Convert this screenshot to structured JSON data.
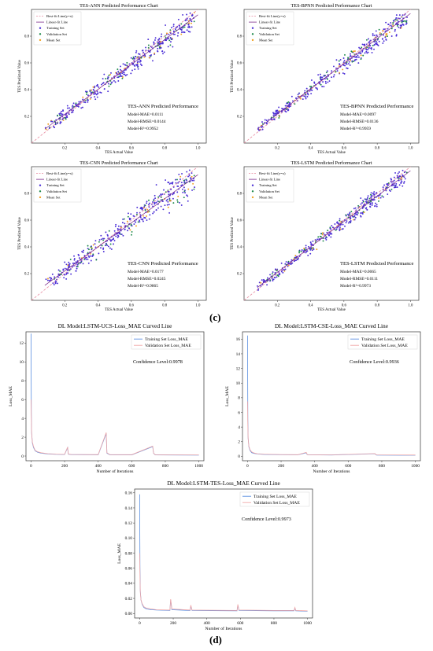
{
  "panel_labels": {
    "c": "(c)",
    "d": "(d)"
  },
  "colors": {
    "training": "#4b2fd6",
    "validation": "#1f8a4c",
    "mean": "#f0a020",
    "bestfit": "#e88aa0",
    "linearfit": "#7b2a8a",
    "train_loss": "#5b8fe0",
    "val_loss": "#f2a8a8"
  },
  "chart_data": [
    {
      "type": "scatter",
      "title": "TES-ANN Predicted Performance Chart",
      "xlabel": "TES Actual Value",
      "ylabel": "TES Predicted Value",
      "xlim": [
        0.0,
        1.05
      ],
      "ylim": [
        0.0,
        1.0
      ],
      "xticks": [
        "0.2",
        "0.4",
        "0.6",
        "0.8",
        "1.0"
      ],
      "yticks": [
        "0.2",
        "0.4",
        "0.6",
        "0.8"
      ],
      "legend": [
        "Best-fit Line(y=x)",
        "Linear-fit Line",
        "Training Set",
        "Validation Set",
        "Mean Set"
      ],
      "legend_position": "top-left",
      "annotation_title": "TES-ANN Predicted Performance",
      "metrics": [
        "Model-MAE=0.0111",
        "Model-RMSE=0.0144",
        "Model-R²=0.9952"
      ],
      "fit": {
        "slope": 0.93,
        "intercept": 0.03
      },
      "spread": 0.06
    },
    {
      "type": "scatter",
      "title": "TES-BPNN Predicted Performance Chart",
      "xlabel": "TES Actual Value",
      "ylabel": "TES Predicted Value",
      "xlim": [
        0.0,
        1.05
      ],
      "ylim": [
        0.0,
        1.0
      ],
      "xticks": [
        "0.2",
        "0.4",
        "0.6",
        "0.8",
        "1.0"
      ],
      "yticks": [
        "0.2",
        "0.4",
        "0.6",
        "0.8"
      ],
      "legend": [
        "Best-fit Line(y=x)",
        "Linear-fit Line",
        "Training Set",
        "Validation Set",
        "Mean Set"
      ],
      "legend_position": "top-left",
      "annotation_title": "TES-BPNN Predicted Performance",
      "metrics": [
        "Model-MAE=0.0097",
        "Model-RMSE=0.0136",
        "Model-R²=0.9959"
      ],
      "fit": {
        "slope": 0.94,
        "intercept": 0.03
      },
      "spread": 0.055
    },
    {
      "type": "scatter",
      "title": "TES-CNN Predicted Performance Chart",
      "xlabel": "TES Actual Value",
      "ylabel": "TES Predicted Value",
      "xlim": [
        0.0,
        1.05
      ],
      "ylim": [
        0.0,
        1.0
      ],
      "xticks": [
        "0.2",
        "0.4",
        "0.6",
        "0.8",
        "1.0"
      ],
      "yticks": [
        "0.2",
        "0.4",
        "0.6",
        "0.8"
      ],
      "legend": [
        "Best-fit Line(y=x)",
        "Linear-fit Line",
        "Training Set",
        "Validation Set",
        "Mean Set"
      ],
      "legend_position": "top-left",
      "annotation_title": "TES-CNN Predicted Performance",
      "metrics": [
        "Model-MAE=0.0177",
        "Model-RMSE=0.0245",
        "Model-R²=0.9865"
      ],
      "fit": {
        "slope": 0.9,
        "intercept": 0.04
      },
      "spread": 0.085
    },
    {
      "type": "scatter",
      "title": "TES-LSTM Predicted Performance Chart",
      "xlabel": "TES Actual Value",
      "ylabel": "TES Predicted Value",
      "xlim": [
        0.0,
        1.05
      ],
      "ylim": [
        0.0,
        1.0
      ],
      "xticks": [
        "0.2",
        "0.4",
        "0.6",
        "0.8",
        "1.0"
      ],
      "yticks": [
        "0.2",
        "0.4",
        "0.6",
        "0.8"
      ],
      "legend": [
        "Best-fit Line(y=x)",
        "Linear-fit Line",
        "Training Set",
        "Validation Set",
        "Mean Set"
      ],
      "legend_position": "top-left",
      "annotation_title": "TES-LSTM Predicted Performance",
      "metrics": [
        "Model-MAE=0.0065",
        "Model-RMSE=0.0111",
        "Model-R²=0.9973"
      ],
      "fit": {
        "slope": 0.95,
        "intercept": 0.02
      },
      "spread": 0.05
    },
    {
      "type": "line",
      "title": "DL Model:LSTM-UCS-Loss_MAE Curved Line",
      "xlabel": "Number of Iterations",
      "ylabel": "Loss_MAE",
      "xlim": [
        -30,
        1030
      ],
      "ylim": [
        -0.5,
        13.2
      ],
      "xticks": [
        0,
        200,
        400,
        600,
        800,
        1000
      ],
      "yticks": [
        0,
        2,
        4,
        6,
        8,
        10,
        12
      ],
      "legend": [
        "Training Set Loss_MAE",
        "Validation Set Loss_MAE"
      ],
      "legend_position": "top-right",
      "annotation": "Confidence Level:0.9978",
      "series": [
        {
          "name": "Training Set Loss_MAE",
          "x": [
            0,
            2,
            4,
            8,
            15,
            25,
            40,
            60,
            100,
            150,
            200,
            218,
            222,
            240,
            300,
            400,
            448,
            452,
            470,
            600,
            725,
            730,
            740,
            850,
            1000
          ],
          "y": [
            13.0,
            4.5,
            2.5,
            1.4,
            0.9,
            0.55,
            0.4,
            0.3,
            0.22,
            0.18,
            0.16,
            0.9,
            0.2,
            0.15,
            0.14,
            0.13,
            2.4,
            0.3,
            0.13,
            0.12,
            1.0,
            0.3,
            0.12,
            0.11,
            0.1
          ]
        },
        {
          "name": "Validation Set Loss_MAE",
          "x": [
            0,
            2,
            4,
            8,
            15,
            25,
            40,
            60,
            100,
            150,
            200,
            218,
            222,
            240,
            300,
            400,
            448,
            452,
            470,
            600,
            725,
            730,
            740,
            850,
            1000
          ],
          "y": [
            6.0,
            4.0,
            2.4,
            1.5,
            1.0,
            0.6,
            0.45,
            0.35,
            0.25,
            0.2,
            0.18,
            0.95,
            0.22,
            0.17,
            0.16,
            0.15,
            2.5,
            0.35,
            0.15,
            0.14,
            1.05,
            0.32,
            0.14,
            0.13,
            0.12
          ]
        }
      ]
    },
    {
      "type": "line",
      "title": "DL Model:LSTM-CSE-Loss_MAE Curved Line",
      "xlabel": "Number of Iterations",
      "ylabel": "Loss_MAE",
      "xlim": [
        -30,
        1030
      ],
      "ylim": [
        -0.6,
        17
      ],
      "xticks": [
        0,
        200,
        400,
        600,
        800,
        1000
      ],
      "yticks": [
        0,
        2,
        4,
        6,
        8,
        10,
        12,
        14,
        16
      ],
      "legend": [
        "Training Set Loss_MAE",
        "Validation Set Loss_MAE"
      ],
      "legend_position": "top-right",
      "annotation": "Confidence Level:0.9936",
      "series": [
        {
          "name": "Training Set Loss_MAE",
          "x": [
            0,
            2,
            4,
            8,
            15,
            25,
            40,
            60,
            100,
            200,
            300,
            350,
            355,
            360,
            500,
            760,
            765,
            770,
            1000
          ],
          "y": [
            16.5,
            5.0,
            2.5,
            1.3,
            0.8,
            0.5,
            0.4,
            0.32,
            0.26,
            0.22,
            0.2,
            0.5,
            0.25,
            0.2,
            0.18,
            0.35,
            0.2,
            0.17,
            0.15
          ]
        },
        {
          "name": "Validation Set Loss_MAE",
          "x": [
            0,
            2,
            4,
            8,
            15,
            25,
            40,
            60,
            100,
            200,
            300,
            350,
            355,
            360,
            500,
            760,
            765,
            770,
            1000
          ],
          "y": [
            7.5,
            4.2,
            2.4,
            1.4,
            0.9,
            0.6,
            0.45,
            0.36,
            0.3,
            0.25,
            0.23,
            0.55,
            0.28,
            0.23,
            0.21,
            0.38,
            0.22,
            0.2,
            0.18
          ]
        }
      ]
    },
    {
      "type": "line",
      "title": "DL Model:LSTM-TES-Loss_MAE Curved Line",
      "xlabel": "Number of Iterations",
      "ylabel": "Loss_MAE",
      "xlim": [
        -30,
        1030
      ],
      "ylim": [
        -0.006,
        0.165
      ],
      "xticks": [
        0,
        200,
        400,
        600,
        800,
        1000
      ],
      "yticks": [
        0.0,
        0.02,
        0.04,
        0.06,
        0.08,
        0.1,
        0.12,
        0.14,
        0.16
      ],
      "legend": [
        "Training Set Loss_MAE",
        "Validation Set Loss_MAE"
      ],
      "legend_position": "top-right",
      "annotation": "Confidence Level:0.9973",
      "series": [
        {
          "name": "Training Set Loss_MAE",
          "x": [
            0,
            2,
            4,
            8,
            15,
            25,
            40,
            70,
            100,
            180,
            185,
            192,
            300,
            305,
            312,
            580,
            585,
            592,
            800,
            920,
            925,
            930,
            1000
          ],
          "y": [
            0.158,
            0.06,
            0.03,
            0.018,
            0.012,
            0.008,
            0.006,
            0.005,
            0.0045,
            0.004,
            0.018,
            0.005,
            0.004,
            0.01,
            0.004,
            0.0035,
            0.011,
            0.004,
            0.0035,
            0.0035,
            0.007,
            0.0035,
            0.003
          ]
        },
        {
          "name": "Validation Set Loss_MAE",
          "x": [
            0,
            2,
            4,
            8,
            15,
            25,
            40,
            70,
            100,
            180,
            185,
            192,
            300,
            305,
            312,
            580,
            585,
            592,
            800,
            920,
            925,
            930,
            1000
          ],
          "y": [
            0.08,
            0.05,
            0.028,
            0.018,
            0.013,
            0.009,
            0.007,
            0.006,
            0.005,
            0.0045,
            0.019,
            0.006,
            0.0045,
            0.011,
            0.0045,
            0.004,
            0.012,
            0.0045,
            0.004,
            0.004,
            0.008,
            0.004,
            0.0035
          ]
        }
      ]
    }
  ]
}
